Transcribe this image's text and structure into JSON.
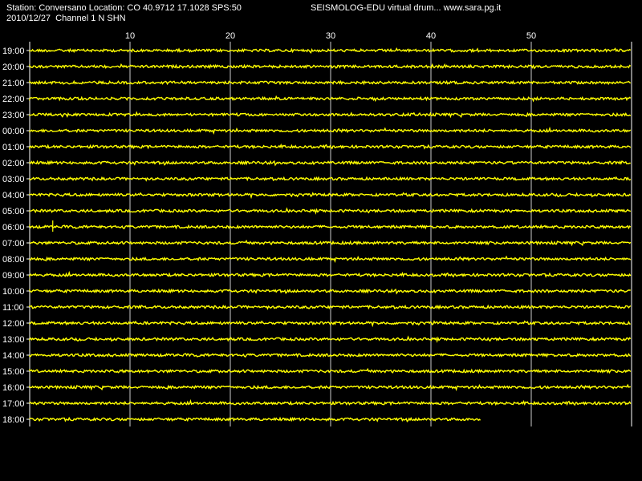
{
  "header": {
    "station_line": "Station: Conversano Location: CO 40.9712 17.1028 SPS:50",
    "app_line": "SEISMOLOG-EDU virtual drum... www.sara.pg.it",
    "date_line": "2010/12/27  Channel 1 N SHN"
  },
  "colors": {
    "background": "#000000",
    "trace": "#ffff00",
    "grid": "#ffffff",
    "text": "#ffffff"
  },
  "chart_data": {
    "type": "line",
    "title": "",
    "xlabel": "",
    "ylabel": "",
    "x_ticks": [
      10,
      20,
      30,
      40,
      50
    ],
    "xlim": [
      0,
      60
    ],
    "grid": true,
    "rows": [
      "19:00",
      "20:00",
      "21:00",
      "22:00",
      "23:00",
      "00:00",
      "01:00",
      "02:00",
      "03:00",
      "04:00",
      "05:00",
      "06:00",
      "07:00",
      "08:00",
      "09:00",
      "10:00",
      "11:00",
      "12:00",
      "13:00",
      "14:00",
      "15:00",
      "16:00",
      "17:00",
      "18:00"
    ],
    "last_row_end_minute": 45,
    "events": [
      {
        "row": "06:00",
        "minute": 2.3,
        "amplitude": "spike"
      }
    ]
  }
}
